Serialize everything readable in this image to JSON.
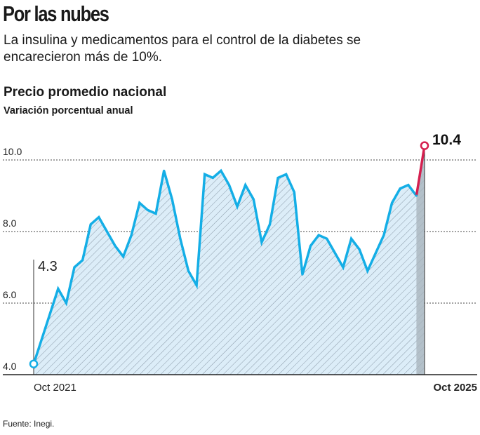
{
  "header": {
    "title": "Por las nubes",
    "subtitle": "La insulina y medicamentos para el control de la diabetes se encarecieron más de 10%."
  },
  "footer": {
    "source": "Fuente: Inegi."
  },
  "chart_data": {
    "type": "area",
    "title": "Precio promedio nacional",
    "subtitle": "Variación porcentual anual",
    "xlabel": "",
    "ylabel": "",
    "x_start": "Oct 2021",
    "x_end": "Oct 2025",
    "x_tick_labels": [
      "Oct 2021",
      "Oct 2025"
    ],
    "y_ticks": [
      "4.0",
      "6.0",
      "8.0",
      "10.0"
    ],
    "ylim": [
      4.0,
      10.4
    ],
    "grid": true,
    "values": [
      4.3,
      5.0,
      5.7,
      6.4,
      6.0,
      7.0,
      7.2,
      8.2,
      8.4,
      8.0,
      7.6,
      7.3,
      7.9,
      8.8,
      8.6,
      8.5,
      9.7,
      8.9,
      7.8,
      6.9,
      6.5,
      9.6,
      9.5,
      9.7,
      9.3,
      8.7,
      9.3,
      8.9,
      7.7,
      8.2,
      9.5,
      9.6,
      9.1,
      6.8,
      7.6,
      7.9,
      7.8,
      7.4,
      7.0,
      7.8,
      7.5,
      6.9,
      7.4,
      7.9,
      8.8,
      9.2,
      9.3,
      9.0,
      10.4
    ],
    "annotations": {
      "first": "4.3",
      "last": "10.4"
    },
    "colors": {
      "line": "#14aee6",
      "highlight": "#d5204f",
      "fill": "#dcedf8",
      "hatch": "#8a9aa8",
      "last_band": "#a9b4bd"
    }
  }
}
